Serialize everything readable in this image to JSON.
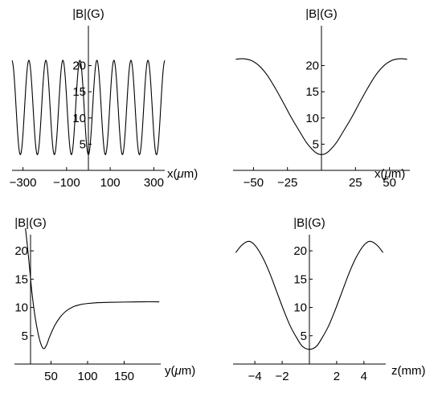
{
  "chart_data": [
    {
      "type": "line",
      "panel": "top-left",
      "xlabel": "x(μm)",
      "ylabel": "|B|(G)",
      "xlim": [
        -350,
        350
      ],
      "ylim": [
        0,
        23
      ],
      "xticks": [
        {
          "v": -300,
          "label": "−300"
        },
        {
          "v": -100,
          "label": "−100"
        },
        {
          "v": 100,
          "label": "100"
        },
        {
          "v": 300,
          "label": "300"
        }
      ],
      "yticks": [
        {
          "v": 5,
          "label": "5"
        },
        {
          "v": 10,
          "label": "10"
        },
        {
          "v": 15,
          "label": "15"
        },
        {
          "v": 20,
          "label": "20"
        }
      ],
      "model": {
        "kind": "periodic",
        "period": 78,
        "min": 3.0,
        "max": 21.0,
        "trough_offset": 0
      }
    },
    {
      "type": "line",
      "panel": "top-right",
      "xlabel": "x(μm)",
      "ylabel": "|B|(G)",
      "xlim": [
        -65,
        65
      ],
      "ylim": [
        0,
        23
      ],
      "xticks": [
        {
          "v": -50,
          "label": "−50"
        },
        {
          "v": -25,
          "label": "−25"
        },
        {
          "v": 25,
          "label": "25"
        },
        {
          "v": 50,
          "label": "50"
        }
      ],
      "yticks": [
        {
          "v": 5,
          "label": "5"
        },
        {
          "v": 10,
          "label": "10"
        },
        {
          "v": 15,
          "label": "15"
        },
        {
          "v": 20,
          "label": "20"
        }
      ],
      "points": [
        [
          -63,
          21.2
        ],
        [
          -58,
          21.3
        ],
        [
          -52,
          21.0
        ],
        [
          -46,
          20.0
        ],
        [
          -40,
          18.2
        ],
        [
          -34,
          15.7
        ],
        [
          -28,
          12.9
        ],
        [
          -22,
          10.0
        ],
        [
          -16,
          7.4
        ],
        [
          -11,
          5.3
        ],
        [
          -6,
          3.8
        ],
        [
          -3,
          3.2
        ],
        [
          0,
          3.0
        ],
        [
          3,
          3.2
        ],
        [
          6,
          3.8
        ],
        [
          11,
          5.3
        ],
        [
          16,
          7.4
        ],
        [
          22,
          10.0
        ],
        [
          28,
          12.9
        ],
        [
          34,
          15.7
        ],
        [
          40,
          18.2
        ],
        [
          46,
          20.0
        ],
        [
          52,
          21.0
        ],
        [
          58,
          21.3
        ],
        [
          63,
          21.2
        ]
      ]
    },
    {
      "type": "line",
      "panel": "bottom-left",
      "xlabel": "y(μm)",
      "ylabel": "|B|(G)",
      "xlim": [
        0,
        200
      ],
      "ylim": [
        0,
        23
      ],
      "xticks": [
        {
          "v": 50,
          "label": "50"
        },
        {
          "v": 100,
          "label": "100"
        },
        {
          "v": 150,
          "label": "150"
        }
      ],
      "yticks": [
        {
          "v": 5,
          "label": "5"
        },
        {
          "v": 10,
          "label": "10"
        },
        {
          "v": 15,
          "label": "15"
        },
        {
          "v": 20,
          "label": "20"
        }
      ],
      "points": [
        [
          15,
          24.0
        ],
        [
          18,
          20.5
        ],
        [
          21,
          16.5
        ],
        [
          24,
          12.5
        ],
        [
          28,
          8.5
        ],
        [
          32,
          5.6
        ],
        [
          36,
          3.6
        ],
        [
          40,
          2.7
        ],
        [
          44,
          3.4
        ],
        [
          48,
          4.8
        ],
        [
          55,
          6.8
        ],
        [
          62,
          8.2
        ],
        [
          70,
          9.3
        ],
        [
          80,
          10.1
        ],
        [
          90,
          10.5
        ],
        [
          100,
          10.7
        ],
        [
          115,
          10.85
        ],
        [
          130,
          10.9
        ],
        [
          150,
          10.95
        ],
        [
          175,
          11.0
        ],
        [
          198,
          11.0
        ]
      ]
    },
    {
      "type": "line",
      "panel": "bottom-right",
      "xlabel": "z(mm)",
      "ylabel": "|B|(G)",
      "xlim": [
        -5.6,
        5.6
      ],
      "ylim": [
        0,
        23
      ],
      "xticks": [
        {
          "v": -4,
          "label": "−4"
        },
        {
          "v": -2,
          "label": "−2"
        },
        {
          "v": 2,
          "label": "2"
        },
        {
          "v": 4,
          "label": "4"
        }
      ],
      "yticks": [
        {
          "v": 5,
          "label": "5"
        },
        {
          "v": 10,
          "label": "10"
        },
        {
          "v": 15,
          "label": "15"
        },
        {
          "v": 20,
          "label": "20"
        }
      ],
      "points": [
        [
          -5.4,
          19.7
        ],
        [
          -5.0,
          20.9
        ],
        [
          -4.6,
          21.6
        ],
        [
          -4.3,
          21.6
        ],
        [
          -3.9,
          20.7
        ],
        [
          -3.4,
          18.7
        ],
        [
          -2.9,
          16.0
        ],
        [
          -2.4,
          12.8
        ],
        [
          -1.9,
          9.6
        ],
        [
          -1.4,
          6.7
        ],
        [
          -0.9,
          4.5
        ],
        [
          -0.5,
          3.1
        ],
        [
          0,
          2.6
        ],
        [
          0.5,
          3.1
        ],
        [
          0.9,
          4.5
        ],
        [
          1.4,
          6.7
        ],
        [
          1.9,
          9.6
        ],
        [
          2.4,
          12.8
        ],
        [
          2.9,
          16.0
        ],
        [
          3.4,
          18.7
        ],
        [
          3.9,
          20.7
        ],
        [
          4.3,
          21.6
        ],
        [
          4.6,
          21.6
        ],
        [
          5.0,
          20.9
        ],
        [
          5.4,
          19.7
        ]
      ]
    }
  ]
}
